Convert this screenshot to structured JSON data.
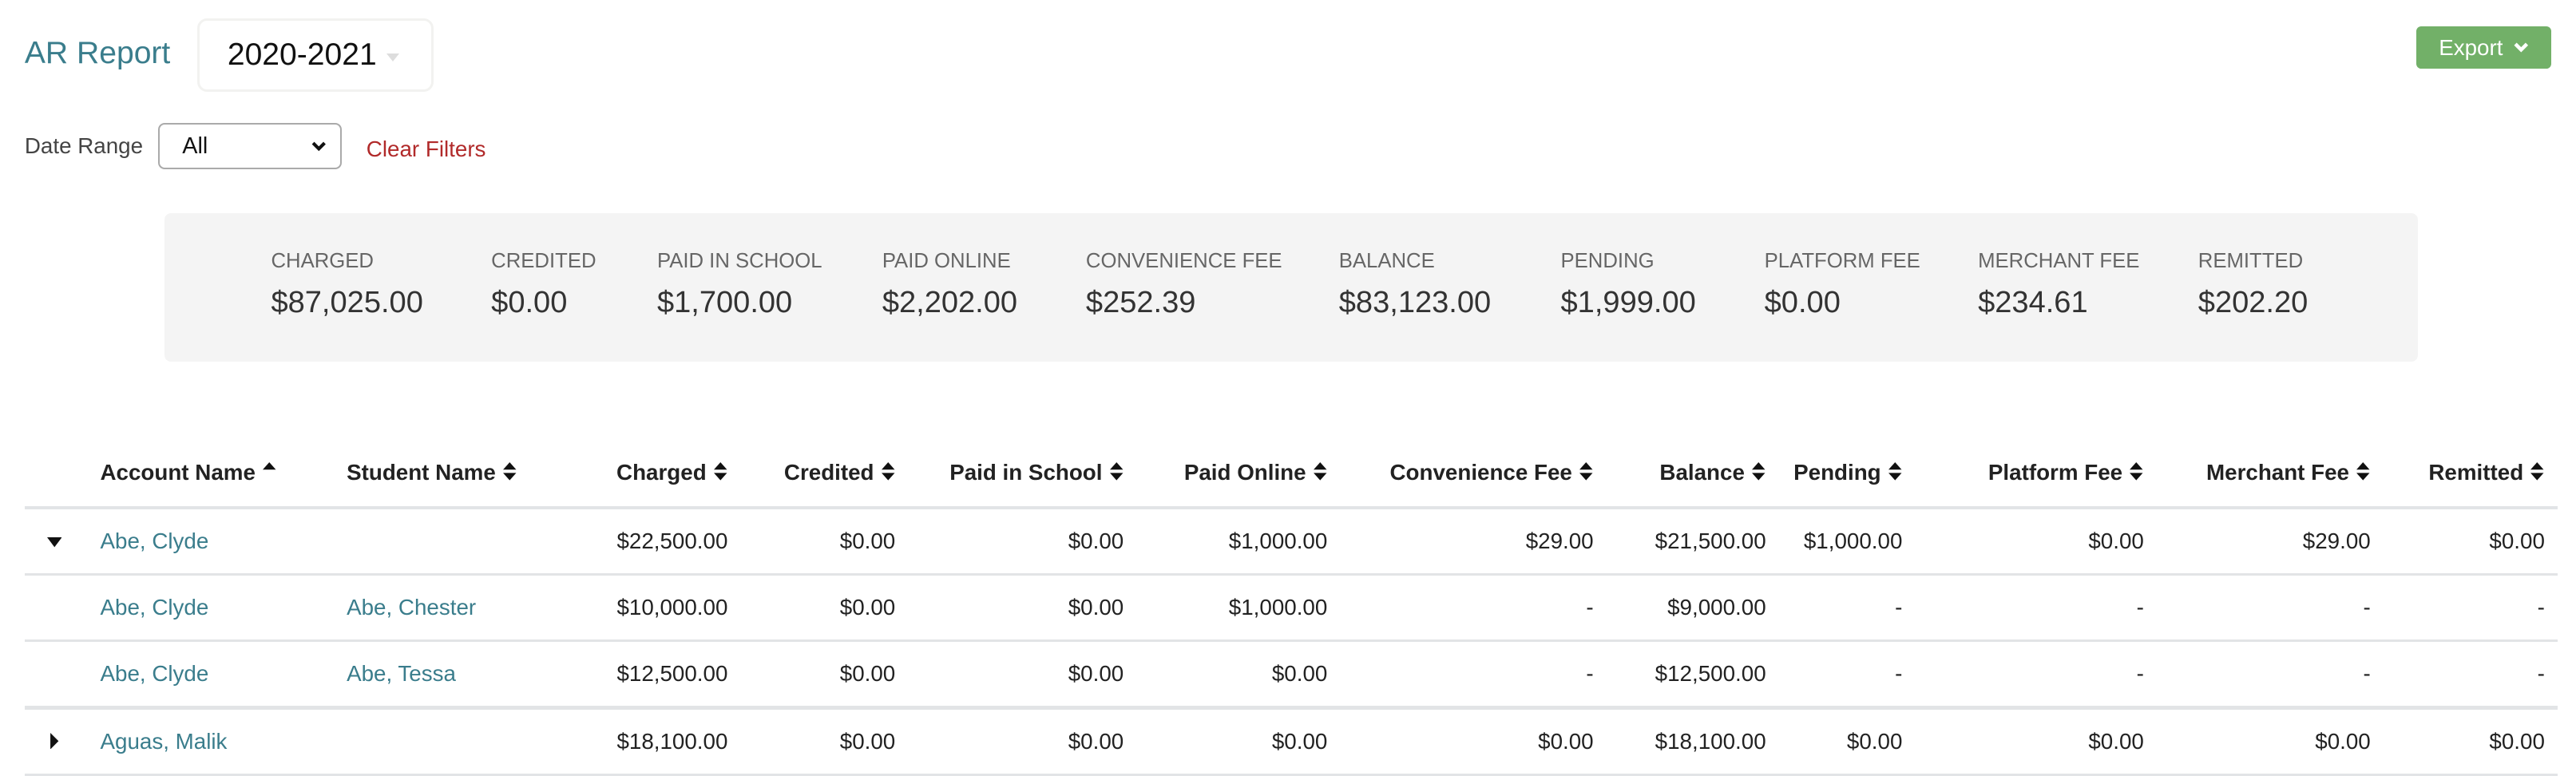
{
  "header": {
    "title": "AR Report",
    "year": "2020-2021",
    "export_label": "Export"
  },
  "filters": {
    "date_range_label": "Date Range",
    "date_range_value": "All",
    "clear_label": "Clear Filters"
  },
  "summary": [
    {
      "label": "Charged",
      "value": "$87,025.00"
    },
    {
      "label": "Credited",
      "value": "$0.00"
    },
    {
      "label": "Paid in School",
      "value": "$1,700.00"
    },
    {
      "label": "Paid Online",
      "value": "$2,202.00"
    },
    {
      "label": "Convenience Fee",
      "value": "$252.39"
    },
    {
      "label": "Balance",
      "value": "$83,123.00"
    },
    {
      "label": "Pending",
      "value": "$1,999.00"
    },
    {
      "label": "Platform Fee",
      "value": "$0.00"
    },
    {
      "label": "Merchant Fee",
      "value": "$234.61"
    },
    {
      "label": "Remitted",
      "value": "$202.20"
    }
  ],
  "table": {
    "columns": [
      "Account Name",
      "Student Name",
      "Charged",
      "Credited",
      "Paid in School",
      "Paid Online",
      "Convenience Fee",
      "Balance",
      "Pending",
      "Platform Fee",
      "Merchant Fee",
      "Remitted"
    ],
    "sort": {
      "column": "Account Name",
      "direction": "asc"
    },
    "rows": [
      {
        "toggle": "expanded",
        "cells": [
          "Abe, Clyde",
          "",
          "$22,500.00",
          "$0.00",
          "$0.00",
          "$1,000.00",
          "$29.00",
          "$21,500.00",
          "$1,000.00",
          "$0.00",
          "$29.00",
          "$0.00"
        ]
      },
      {
        "toggle": "none",
        "cells": [
          "Abe, Clyde",
          "Abe, Chester",
          "$10,000.00",
          "$0.00",
          "$0.00",
          "$1,000.00",
          "-",
          "$9,000.00",
          "-",
          "-",
          "-",
          "-"
        ]
      },
      {
        "toggle": "none",
        "cells": [
          "Abe, Clyde",
          "Abe, Tessa",
          "$12,500.00",
          "$0.00",
          "$0.00",
          "$0.00",
          "-",
          "$12,500.00",
          "-",
          "-",
          "-",
          "-"
        ]
      },
      {
        "toggle": "collapsed",
        "cells": [
          "Aguas, Malik",
          "",
          "$18,100.00",
          "$0.00",
          "$0.00",
          "$0.00",
          "$0.00",
          "$18,100.00",
          "$0.00",
          "$0.00",
          "$0.00",
          "$0.00"
        ]
      }
    ]
  },
  "colors": {
    "accent": "#3a7d8c",
    "export": "#72b068",
    "clear": "#b12a2a",
    "summary_bg": "#f4f4f4"
  }
}
